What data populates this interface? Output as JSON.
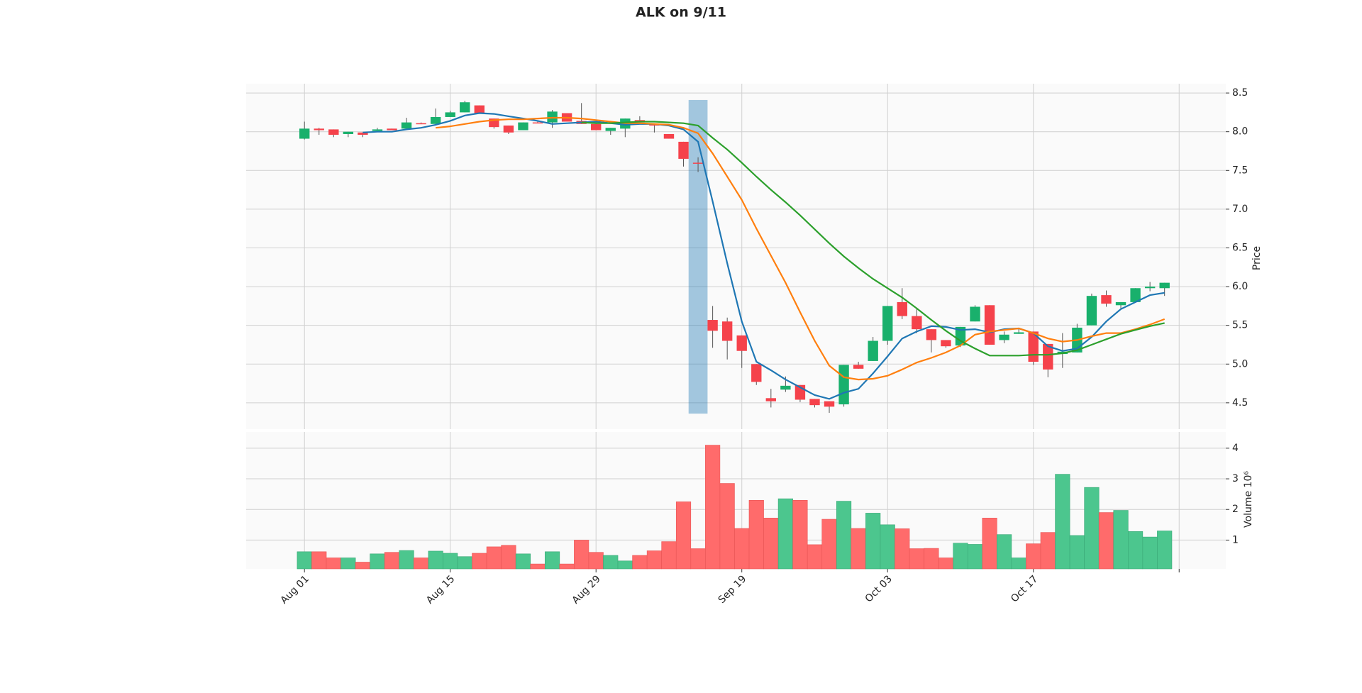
{
  "chart_data": {
    "type": "candlestick",
    "title": "ALK on 9/11",
    "ylabel": "Price",
    "volume_label": "Volume  10⁶",
    "xlim": [
      -4,
      63.2
    ],
    "ylim": [
      4.16,
      8.62
    ],
    "vlim": [
      0.06,
      4.53
    ],
    "xticks": [
      {
        "value": 0,
        "label": "Aug 01"
      },
      {
        "value": 10,
        "label": "Aug 15"
      },
      {
        "value": 20,
        "label": "Aug 29"
      },
      {
        "value": 30,
        "label": "Sep 19"
      },
      {
        "value": 40,
        "label": "Oct 03"
      },
      {
        "value": 50,
        "label": "Oct 17"
      }
    ],
    "xticks_extra": [
      60
    ],
    "yticks": [
      4.5,
      {
        "value": 5,
        "label": "5.0"
      },
      5.5,
      {
        "value": 6,
        "label": "6.0"
      },
      6.5,
      {
        "value": 7,
        "label": "7.0"
      },
      7.5,
      {
        "value": 8,
        "label": "8.0"
      },
      8.5
    ],
    "vticks": [
      1,
      2,
      3,
      4
    ],
    "grid": true,
    "up_color": "#19b06c",
    "down_color": "#f5424b",
    "vol_up_color": "#4cc68e",
    "vol_down_color": "#ff6b6b",
    "open": [
      7.91,
      8.04,
      8.03,
      7.97,
      7.99,
      8.01,
      8.04,
      8.04,
      8.11,
      8.1,
      8.19,
      8.25,
      8.34,
      8.17,
      8.08,
      8.02,
      8.12,
      8.12,
      8.24,
      8.14,
      8.1,
      8.01,
      8.04,
      8.15,
      8.1,
      7.97,
      7.87,
      7.6,
      5.57,
      5.55,
      5.37,
      5.0,
      4.56,
      4.67,
      4.73,
      4.55,
      4.52,
      4.48,
      4.99,
      5.04,
      5.3,
      5.8,
      5.62,
      5.45,
      5.31,
      5.24,
      5.55,
      5.76,
      5.31,
      5.39,
      5.42,
      5.26,
      5.13,
      5.15,
      5.5,
      5.89,
      5.76,
      5.8,
      5.98,
      5.98
    ],
    "high": [
      8.13,
      8.05,
      8.03,
      8.0,
      7.99,
      8.05,
      8.04,
      8.18,
      8.12,
      8.3,
      8.27,
      8.4,
      8.34,
      8.17,
      8.08,
      8.12,
      8.13,
      8.28,
      8.24,
      8.37,
      8.1,
      8.05,
      8.17,
      8.2,
      8.1,
      7.97,
      7.87,
      7.67,
      5.75,
      5.6,
      5.37,
      5.0,
      4.68,
      4.84,
      4.73,
      4.55,
      4.52,
      4.99,
      5.03,
      5.35,
      5.75,
      5.98,
      5.72,
      5.45,
      5.31,
      5.48,
      5.76,
      5.76,
      5.42,
      5.46,
      5.42,
      5.26,
      5.4,
      5.52,
      5.91,
      5.95,
      5.8,
      5.98,
      6.06,
      6.05
    ],
    "low": [
      7.9,
      7.96,
      7.93,
      7.93,
      7.93,
      8.01,
      8.02,
      8.04,
      8.1,
      8.1,
      8.19,
      8.25,
      8.24,
      8.04,
      7.97,
      8.02,
      8.11,
      8.05,
      8.13,
      8.1,
      8.02,
      7.96,
      7.93,
      8.12,
      7.99,
      7.91,
      7.55,
      7.48,
      5.21,
      5.06,
      4.95,
      4.73,
      4.44,
      4.64,
      4.51,
      4.44,
      4.37,
      4.45,
      4.94,
      5.04,
      5.25,
      5.58,
      5.4,
      5.15,
      5.21,
      5.22,
      5.55,
      5.25,
      5.27,
      5.39,
      4.99,
      4.83,
      4.95,
      5.15,
      5.5,
      5.74,
      5.72,
      5.79,
      5.94,
      5.88
    ],
    "close": [
      8.04,
      8.02,
      7.96,
      8.0,
      7.96,
      8.03,
      8.02,
      8.12,
      8.1,
      8.19,
      8.25,
      8.38,
      8.24,
      8.06,
      7.99,
      8.12,
      8.11,
      8.26,
      8.13,
      8.1,
      8.02,
      8.05,
      8.17,
      8.12,
      8.08,
      7.91,
      7.65,
      7.59,
      5.43,
      5.3,
      5.17,
      4.77,
      4.52,
      4.72,
      4.54,
      4.47,
      4.45,
      4.99,
      4.94,
      5.3,
      5.75,
      5.62,
      5.45,
      5.31,
      5.23,
      5.48,
      5.74,
      5.25,
      5.38,
      5.41,
      5.03,
      4.93,
      5.16,
      5.47,
      5.88,
      5.78,
      5.8,
      5.98,
      6.0,
      6.05
    ],
    "volume": [
      0.62,
      0.62,
      0.42,
      0.42,
      0.28,
      0.55,
      0.6,
      0.66,
      0.42,
      0.64,
      0.57,
      0.46,
      0.57,
      0.78,
      0.83,
      0.55,
      0.22,
      0.62,
      0.22,
      1.0,
      0.6,
      0.5,
      0.32,
      0.5,
      0.65,
      0.95,
      2.25,
      0.72,
      4.1,
      2.85,
      1.38,
      2.3,
      1.72,
      2.35,
      2.3,
      0.85,
      1.68,
      2.27,
      1.38,
      1.88,
      1.5,
      1.37,
      0.72,
      0.73,
      0.42,
      0.9,
      0.86,
      1.72,
      1.18,
      0.42,
      0.88,
      1.25,
      3.15,
      1.15,
      2.72,
      1.9,
      1.97,
      1.28,
      1.1,
      1.3
    ],
    "moving_averages": [
      {
        "color": "#1f77b4",
        "values": [
          null,
          null,
          null,
          null,
          7.99,
          8.0,
          8.0,
          8.03,
          8.05,
          8.09,
          8.14,
          8.21,
          8.24,
          8.23,
          8.2,
          8.17,
          8.14,
          8.1,
          8.11,
          8.12,
          8.13,
          8.11,
          8.09,
          8.1,
          8.1,
          8.08,
          8.03,
          7.87,
          7.1,
          6.3,
          5.55,
          5.03,
          4.92,
          4.8,
          4.7,
          4.6,
          4.55,
          4.63,
          4.68,
          4.88,
          5.1,
          5.33,
          5.42,
          5.49,
          5.48,
          5.44,
          5.45,
          5.41,
          5.45,
          5.46,
          5.4,
          5.23,
          5.17,
          5.2,
          5.35,
          5.55,
          5.71,
          5.8,
          5.89,
          5.92
        ]
      },
      {
        "color": "#ff7f0e",
        "values": [
          null,
          null,
          null,
          null,
          null,
          null,
          null,
          null,
          null,
          8.05,
          8.07,
          8.1,
          8.13,
          8.15,
          8.16,
          8.16,
          8.17,
          8.18,
          8.18,
          8.17,
          8.15,
          8.13,
          8.11,
          8.11,
          8.1,
          8.09,
          8.05,
          7.98,
          7.72,
          7.42,
          7.12,
          6.75,
          6.4,
          6.05,
          5.67,
          5.3,
          4.98,
          4.83,
          4.8,
          4.81,
          4.85,
          4.93,
          5.02,
          5.08,
          5.15,
          5.24,
          5.38,
          5.42,
          5.44,
          5.46,
          5.4,
          5.33,
          5.29,
          5.31,
          5.36,
          5.4,
          5.4,
          5.45,
          5.51,
          5.58
        ]
      },
      {
        "color": "#2ca02c",
        "values": [
          null,
          null,
          null,
          null,
          null,
          null,
          null,
          null,
          null,
          null,
          null,
          null,
          null,
          null,
          null,
          null,
          null,
          null,
          null,
          8.12,
          8.11,
          8.11,
          8.12,
          8.13,
          8.13,
          8.12,
          8.11,
          8.08,
          7.92,
          7.77,
          7.6,
          7.42,
          7.25,
          7.09,
          6.92,
          6.74,
          6.56,
          6.39,
          6.24,
          6.1,
          5.98,
          5.86,
          5.72,
          5.57,
          5.43,
          5.3,
          5.2,
          5.11,
          5.11,
          5.11,
          5.12,
          5.12,
          5.14,
          5.18,
          5.25,
          5.32,
          5.39,
          5.44,
          5.49,
          5.53
        ]
      }
    ],
    "highlight": {
      "x": [
        26.35,
        27.65
      ],
      "y": [
        4.36,
        8.41
      ],
      "color": "#1f77b4",
      "opacity": 0.4
    }
  }
}
